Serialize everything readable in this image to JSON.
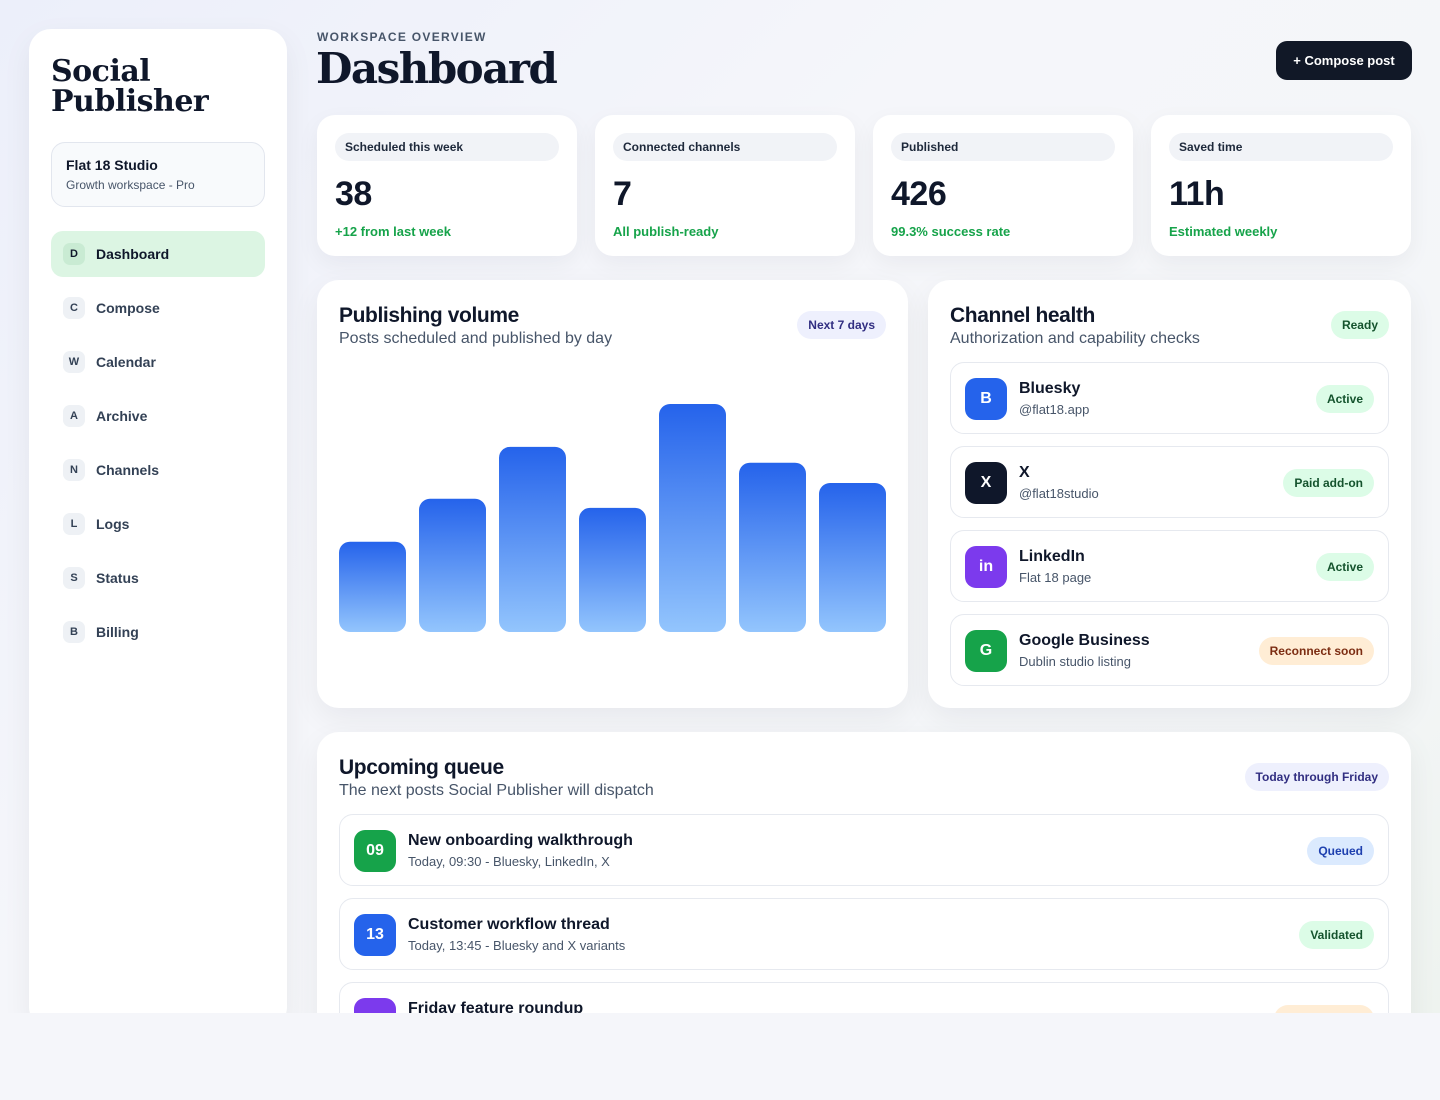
{
  "sidebar": {
    "brand": "Social Publisher",
    "workspace": {
      "name": "Flat 18 Studio",
      "plan": "Growth workspace - Pro"
    },
    "items": [
      {
        "key": "D",
        "label": "Dashboard"
      },
      {
        "key": "C",
        "label": "Compose"
      },
      {
        "key": "W",
        "label": "Calendar"
      },
      {
        "key": "A",
        "label": "Archive"
      },
      {
        "key": "N",
        "label": "Channels"
      },
      {
        "key": "L",
        "label": "Logs"
      },
      {
        "key": "S",
        "label": "Status"
      },
      {
        "key": "B",
        "label": "Billing"
      }
    ]
  },
  "header": {
    "eyebrow": "WORKSPACE OVERVIEW",
    "title": "Dashboard",
    "compose_label": "+ Compose post"
  },
  "stats": [
    {
      "label": "Scheduled this week",
      "value": "38",
      "note": "+12 from last week"
    },
    {
      "label": "Connected channels",
      "value": "7",
      "note": "All publish-ready"
    },
    {
      "label": "Published",
      "value": "426",
      "note": "99.3% success rate"
    },
    {
      "label": "Saved time",
      "value": "11h",
      "note": "Estimated weekly"
    }
  ],
  "volume": {
    "title": "Publishing volume",
    "subtitle": "Posts scheduled and published by day",
    "badge": "Next 7 days"
  },
  "chart_data": {
    "type": "bar",
    "values": [
      40,
      59,
      82,
      55,
      101,
      75,
      66
    ],
    "ylim": [
      0,
      101
    ],
    "colors": {
      "top": "#2563eb",
      "bottom": "#93c5fd"
    }
  },
  "health": {
    "title": "Channel health",
    "subtitle": "Authorization and capability checks",
    "badge": "Ready",
    "channels": [
      {
        "icon": "B",
        "name": "Bluesky",
        "handle": "@flat18.app",
        "status": "Active",
        "color": "#2563eb"
      },
      {
        "icon": "X",
        "name": "X",
        "handle": "@flat18studio",
        "status": "Paid add-on",
        "color": "#0f172a"
      },
      {
        "icon": "in",
        "name": "LinkedIn",
        "handle": "Flat 18 page",
        "status": "Active",
        "color": "#7c3aed"
      },
      {
        "icon": "G",
        "name": "Google Business",
        "handle": "Dublin studio listing",
        "status": "Reconnect soon",
        "color": "#16a34a"
      }
    ]
  },
  "queue": {
    "title": "Upcoming queue",
    "subtitle": "The next posts Social Publisher will dispatch",
    "badge": "Today through Friday",
    "items": [
      {
        "time": "09",
        "title": "New onboarding walkthrough",
        "meta": "Today, 09:30 - Bluesky, LinkedIn, X",
        "status": "Queued",
        "color": "#16a34a"
      },
      {
        "time": "13",
        "title": "Customer workflow thread",
        "meta": "Today, 13:45 - Bluesky and X variants",
        "status": "Validated",
        "color": "#2563eb"
      },
      {
        "time": "",
        "title": "Friday feature roundup",
        "meta": "",
        "status": "",
        "color": "#7c3aed"
      }
    ]
  }
}
